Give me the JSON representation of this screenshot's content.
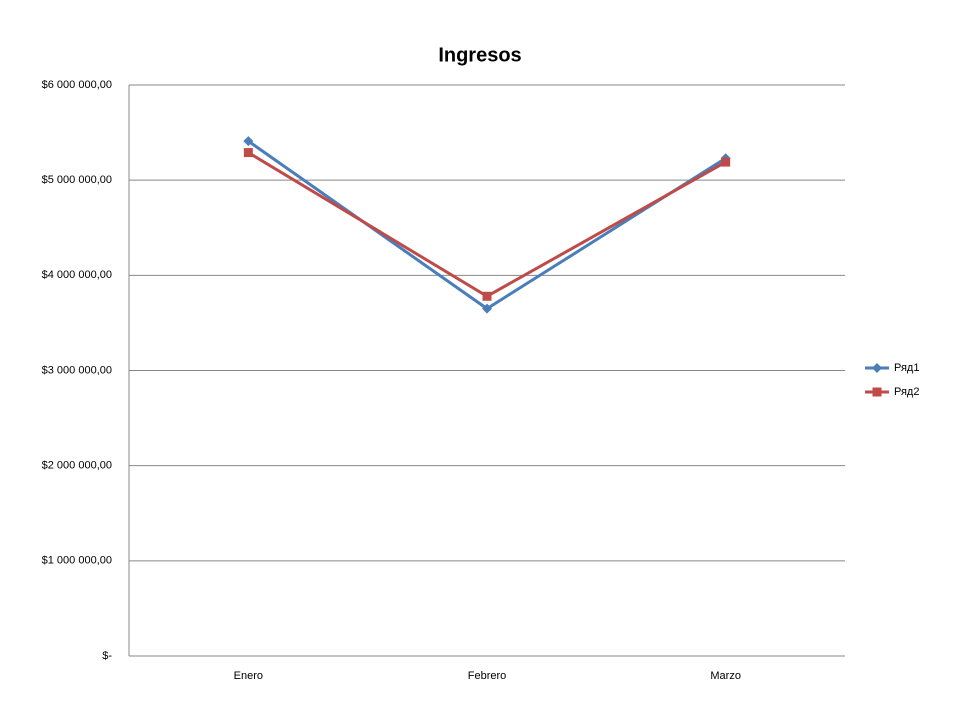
{
  "chart_data": {
    "type": "line",
    "title": "Ingresos",
    "categories": [
      "Enero",
      "Febrero",
      "Marzo"
    ],
    "series": [
      {
        "name": "Ряд1",
        "color": "#4a7ebb",
        "marker": "diamond",
        "values": [
          5410000,
          3650000,
          5230000
        ]
      },
      {
        "name": "Ряд2",
        "color": "#be4b48",
        "marker": "square",
        "values": [
          5290000,
          3780000,
          5190000
        ]
      }
    ],
    "ylim": [
      0,
      6000000
    ],
    "yticks": [
      {
        "value": 0,
        "label": "$-"
      },
      {
        "value": 1000000,
        "label": "$1 000 000,00"
      },
      {
        "value": 2000000,
        "label": "$2 000 000,00"
      },
      {
        "value": 3000000,
        "label": "$3 000 000,00"
      },
      {
        "value": 4000000,
        "label": "$4 000 000,00"
      },
      {
        "value": 5000000,
        "label": "$5 000 000,00"
      },
      {
        "value": 6000000,
        "label": "$6 000 000,00"
      }
    ],
    "grid": true,
    "legend": "right"
  }
}
